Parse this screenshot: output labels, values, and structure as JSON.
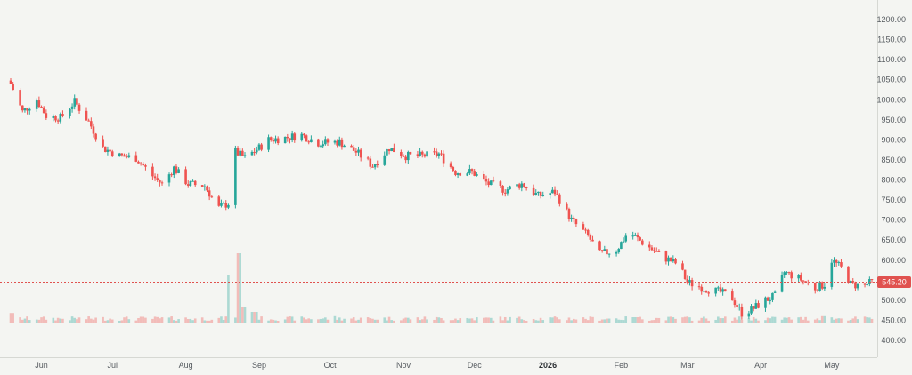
{
  "chart_data": {
    "type": "candlestick",
    "title": "",
    "y_axis": {
      "position": "right",
      "range": [
        430,
        1210
      ],
      "ticks": [
        "1200.00",
        "1150.00",
        "1100.00",
        "1050.00",
        "1000.00",
        "950.00",
        "900.00",
        "850.00",
        "800.00",
        "750.00",
        "700.00",
        "650.00",
        "600.00",
        "550.00",
        "500.00",
        "450.00",
        "400.00"
      ]
    },
    "x_axis": {
      "range": [
        "2025-05-22",
        "2026-05-21"
      ],
      "tick_labels": [
        {
          "label": "Jun",
          "date": "2025-06-01"
        },
        {
          "label": "Jul",
          "date": "2025-07-01"
        },
        {
          "label": "Aug",
          "date": "2025-08-01"
        },
        {
          "label": "Sep",
          "date": "2025-09-01"
        },
        {
          "label": "Oct",
          "date": "2025-10-01"
        },
        {
          "label": "Nov",
          "date": "2025-11-01"
        },
        {
          "label": "Dec",
          "date": "2025-12-01"
        },
        {
          "label": "2026",
          "date": "2026-01-01",
          "bold": true
        },
        {
          "label": "Feb",
          "date": "2026-02-01"
        },
        {
          "label": "Mar",
          "date": "2026-03-01"
        },
        {
          "label": "Apr",
          "date": "2026-04-01"
        },
        {
          "label": "May",
          "date": "2026-05-01"
        }
      ]
    },
    "last_price": {
      "value": 545.2,
      "label": "545.20"
    },
    "price_path": [
      [
        "2025-05-22",
        1040
      ],
      [
        "2025-05-27",
        970
      ],
      [
        "2025-06-02",
        1000
      ],
      [
        "2025-06-06",
        960
      ],
      [
        "2025-06-12",
        955
      ],
      [
        "2025-06-18",
        995
      ],
      [
        "2025-06-24",
        945
      ],
      [
        "2025-06-30",
        880
      ],
      [
        "2025-07-07",
        860
      ],
      [
        "2025-07-14",
        855
      ],
      [
        "2025-07-21",
        810
      ],
      [
        "2025-07-25",
        790
      ],
      [
        "2025-07-30",
        830
      ],
      [
        "2025-08-05",
        790
      ],
      [
        "2025-08-12",
        785
      ],
      [
        "2025-08-18",
        730
      ],
      [
        "2025-08-23",
        745
      ],
      [
        "2025-08-25",
        870
      ],
      [
        "2025-08-29",
        855
      ],
      [
        "2025-09-04",
        880
      ],
      [
        "2025-09-08",
        900
      ],
      [
        "2025-09-15",
        905
      ],
      [
        "2025-09-22",
        912
      ],
      [
        "2025-09-29",
        893
      ],
      [
        "2025-10-08",
        895
      ],
      [
        "2025-10-15",
        870
      ],
      [
        "2025-10-22",
        835
      ],
      [
        "2025-10-29",
        880
      ],
      [
        "2025-11-05",
        860
      ],
      [
        "2025-11-12",
        860
      ],
      [
        "2025-11-19",
        865
      ],
      [
        "2025-11-26",
        820
      ],
      [
        "2025-12-03",
        820
      ],
      [
        "2025-12-10",
        790
      ],
      [
        "2025-12-17",
        775
      ],
      [
        "2025-12-24",
        790
      ],
      [
        "2025-12-31",
        760
      ],
      [
        "2026-01-07",
        770
      ],
      [
        "2026-01-14",
        700
      ],
      [
        "2026-01-21",
        660
      ],
      [
        "2026-01-26",
        615
      ],
      [
        "2026-02-02",
        625
      ],
      [
        "2026-02-07",
        670
      ],
      [
        "2026-02-14",
        640
      ],
      [
        "2026-02-21",
        610
      ],
      [
        "2026-02-28",
        590
      ],
      [
        "2026-03-04",
        545
      ],
      [
        "2026-03-11",
        530
      ],
      [
        "2026-03-18",
        520
      ],
      [
        "2026-03-23",
        505
      ],
      [
        "2026-03-27",
        468
      ],
      [
        "2026-04-01",
        480
      ],
      [
        "2026-04-06",
        500
      ],
      [
        "2026-04-10",
        510
      ],
      [
        "2026-04-14",
        570
      ],
      [
        "2026-04-20",
        555
      ],
      [
        "2026-04-27",
        530
      ],
      [
        "2026-05-01",
        540
      ],
      [
        "2026-05-04",
        600
      ],
      [
        "2026-05-09",
        575
      ],
      [
        "2026-05-12",
        540
      ],
      [
        "2026-05-17",
        535
      ],
      [
        "2026-05-21",
        545
      ]
    ],
    "volume_spikes": [
      [
        "2025-08-23",
        0.45
      ],
      [
        "2025-08-27",
        0.65
      ],
      [
        "2025-08-29",
        0.15
      ],
      [
        "2025-09-02",
        0.1
      ],
      [
        "2025-05-23",
        0.09
      ],
      [
        "2025-10-05",
        0.06
      ],
      [
        "2026-05-01",
        0.06
      ],
      [
        "2026-02-10",
        0.05
      ]
    ],
    "legend": "none",
    "grid": false
  }
}
